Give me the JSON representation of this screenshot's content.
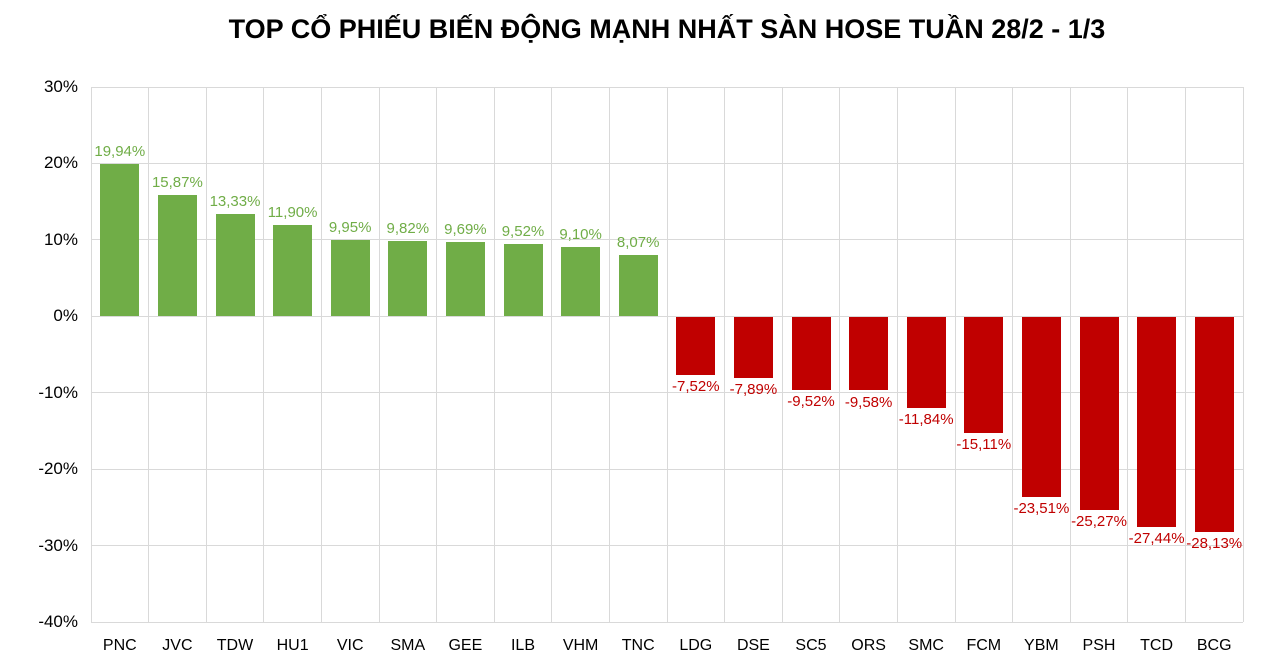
{
  "chart_data": {
    "type": "bar",
    "title": "TOP CỔ PHIẾU BIẾN ĐỘNG MẠNH NHẤT SÀN HOSE TUẦN 28/2 - 1/3",
    "categories": [
      "PNC",
      "JVC",
      "TDW",
      "HU1",
      "VIC",
      "SMA",
      "GEE",
      "ILB",
      "VHM",
      "TNC",
      "LDG",
      "DSE",
      "SC5",
      "ORS",
      "SMC",
      "FCM",
      "YBM",
      "PSH",
      "TCD",
      "BCG"
    ],
    "values": [
      19.94,
      15.87,
      13.33,
      11.9,
      9.95,
      9.82,
      9.69,
      9.52,
      9.1,
      8.07,
      -7.52,
      -7.89,
      -9.52,
      -9.58,
      -11.84,
      -15.11,
      -23.51,
      -25.27,
      -27.44,
      -28.13
    ],
    "labels": [
      "19,94%",
      "15,87%",
      "13,33%",
      "11,90%",
      "9,95%",
      "9,82%",
      "9,69%",
      "9,52%",
      "9,10%",
      "8,07%",
      "-7,52%",
      "-7,89%",
      "-9,52%",
      "-9,58%",
      "-11,84%",
      "-15,11%",
      "-23,51%",
      "-25,27%",
      "-27,44%",
      "-28,13%"
    ],
    "xlabel": "",
    "ylabel": "",
    "y_ticks": [
      "30%",
      "20%",
      "10%",
      "0%",
      "-10%",
      "-20%",
      "-30%",
      "-40%"
    ],
    "y_tick_values": [
      30,
      20,
      10,
      0,
      -10,
      -20,
      -30,
      -40
    ],
    "ylim": [
      -40,
      30
    ],
    "grid": true,
    "legend_position": "none",
    "colors": {
      "positive_bar": "#70AD47",
      "negative_bar": "#C00000",
      "gridline": "#D9D9D9",
      "axis_text": "#000000",
      "title_text": "#000000",
      "background": "#FFFFFF"
    }
  }
}
